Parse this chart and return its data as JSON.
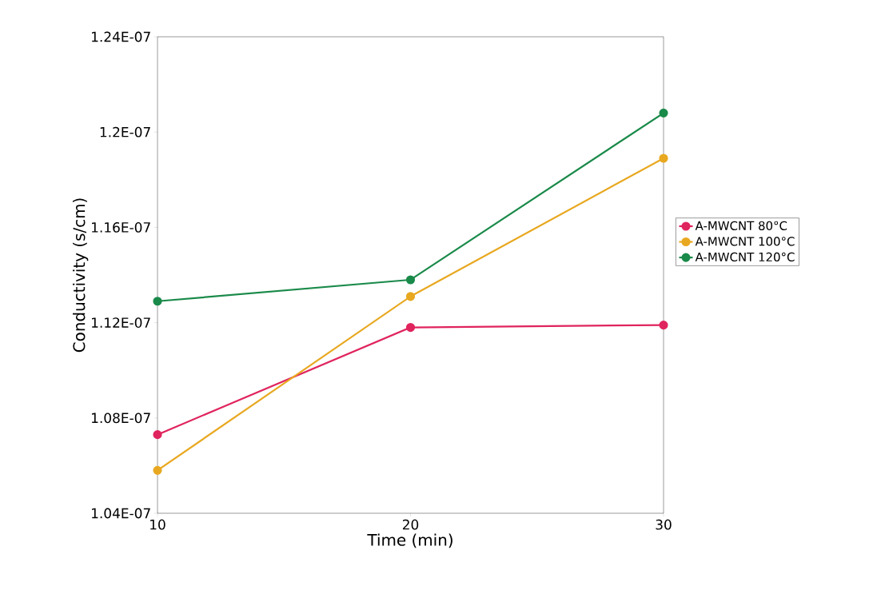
{
  "chart_data": {
    "type": "line",
    "xlabel": "Time (min)",
    "ylabel": "Conductivity (s/cm)",
    "x": [
      10,
      20,
      30
    ],
    "series": [
      {
        "name": "A-MWCNT 80°C",
        "color": "#e0245e",
        "values": [
          1.073e-07,
          1.118e-07,
          1.119e-07
        ]
      },
      {
        "name": "A-MWCNT 100°C",
        "color": "#e8a820",
        "values": [
          1.058e-07,
          1.131e-07,
          1.189e-07
        ]
      },
      {
        "name": "A-MWCNT 120°C",
        "color": "#1a8a4a",
        "values": [
          1.129e-07,
          1.138e-07,
          1.208e-07
        ]
      }
    ],
    "xlim": [
      10,
      30
    ],
    "ylim": [
      1.04e-07,
      1.24e-07
    ],
    "xticks": [
      10,
      20,
      30
    ],
    "yticks": [
      {
        "value": 1.04e-07,
        "label": "1.04E-07"
      },
      {
        "value": 1.08e-07,
        "label": "1.08E-07"
      },
      {
        "value": 1.12e-07,
        "label": "1.12E-07"
      },
      {
        "value": 1.16e-07,
        "label": "1.16E-07"
      },
      {
        "value": 1.2e-07,
        "label": "1.2E-07"
      },
      {
        "value": 1.24e-07,
        "label": "1.24E-07"
      }
    ],
    "grid": false,
    "legend": "right",
    "marker": "circle",
    "line_style": "solid"
  }
}
